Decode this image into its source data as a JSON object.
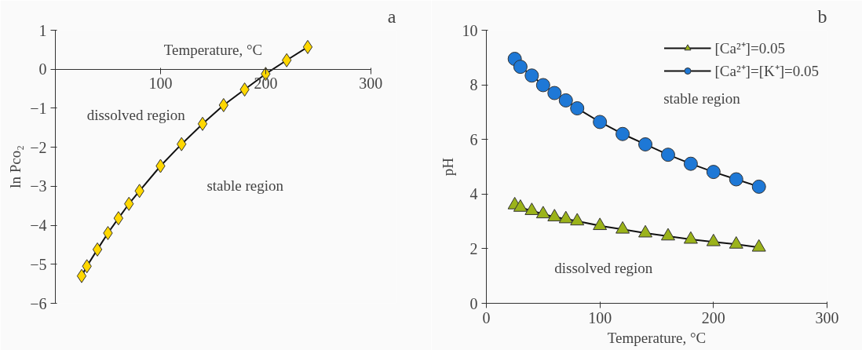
{
  "chart_data": [
    {
      "type": "line",
      "title": "a",
      "xlabel": "Temperature, °C",
      "ylabel": "ln Pco₂",
      "x": [
        25,
        30,
        40,
        50,
        60,
        70,
        80,
        100,
        120,
        140,
        160,
        180,
        200,
        220,
        240
      ],
      "series": [
        {
          "color": "#ffd700",
          "marker": "diamond",
          "values": [
            -5.3,
            -5.05,
            -4.62,
            -4.2,
            -3.82,
            -3.45,
            -3.12,
            -2.48,
            -1.92,
            -1.4,
            -0.92,
            -0.52,
            -0.12,
            0.23,
            0.57
          ]
        }
      ],
      "xlim": [
        0,
        300
      ],
      "xticks": [
        100,
        200,
        300
      ],
      "ylim": [
        -6,
        1
      ],
      "yticks": [
        -6,
        -5,
        -4,
        -3,
        -2,
        -1,
        0,
        1
      ],
      "grid": false,
      "legend": false,
      "annotations": [
        "dissolved region",
        "stable region"
      ]
    },
    {
      "type": "line",
      "title": "b",
      "xlabel": "Temperature, °C",
      "ylabel": "pH",
      "x": [
        25,
        30,
        40,
        50,
        60,
        70,
        80,
        100,
        120,
        140,
        160,
        180,
        200,
        220,
        240
      ],
      "series": [
        {
          "name": "[Ca²⁺]=0.05",
          "color": "#9bb31a",
          "marker": "triangle",
          "values": [
            3.6,
            3.51,
            3.39,
            3.27,
            3.16,
            3.09,
            3.01,
            2.84,
            2.71,
            2.57,
            2.46,
            2.34,
            2.25,
            2.16,
            2.05
          ]
        },
        {
          "name": "[Ca²⁺]=[K⁺]=0.05",
          "color": "#1e78d6",
          "marker": "circle",
          "values": [
            8.95,
            8.66,
            8.34,
            7.99,
            7.7,
            7.43,
            7.14,
            6.64,
            6.2,
            5.82,
            5.44,
            5.11,
            4.81,
            4.54,
            4.27
          ]
        }
      ],
      "xlim": [
        0,
        300
      ],
      "xticks": [
        0,
        100,
        200,
        300
      ],
      "ylim": [
        0,
        10
      ],
      "yticks": [
        0,
        2,
        4,
        6,
        8,
        10
      ],
      "grid": false,
      "legend": "top right",
      "annotations": [
        "dissolved region",
        "stable region"
      ]
    }
  ]
}
